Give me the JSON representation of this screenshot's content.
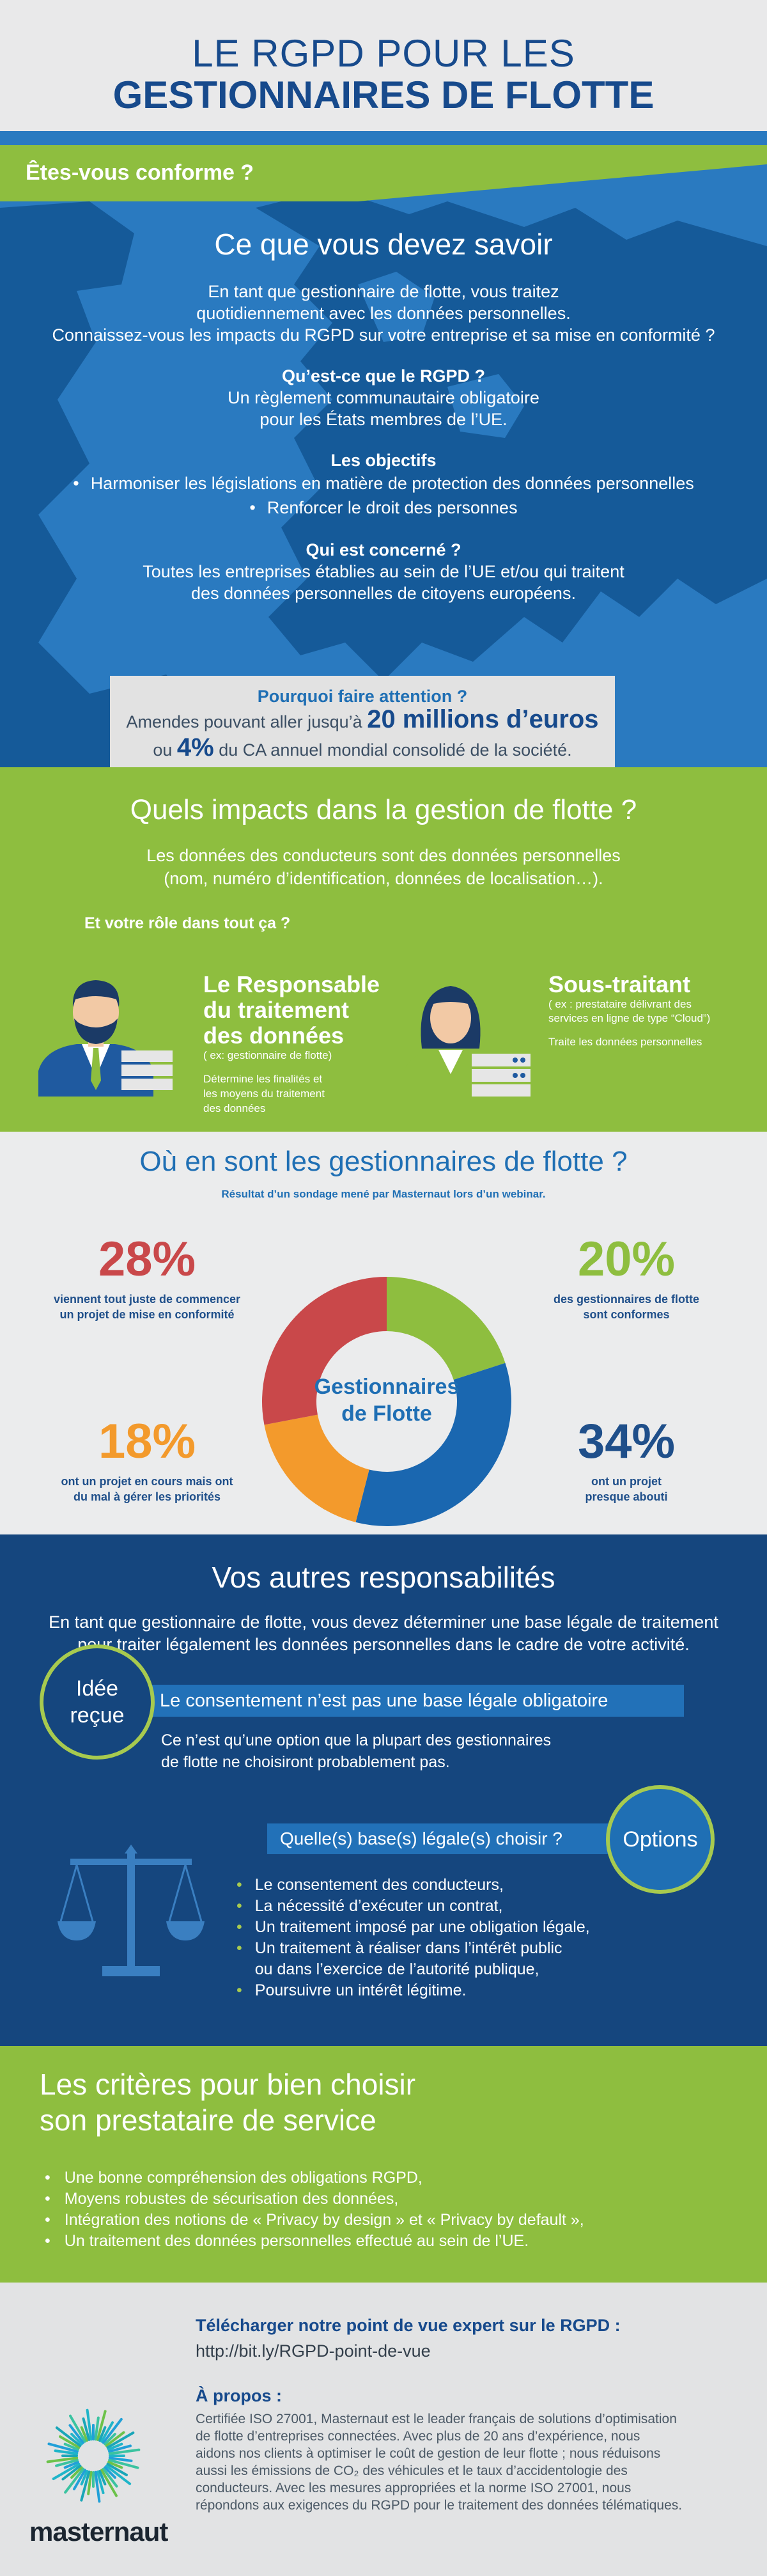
{
  "header": {
    "line1": "LE RGPD POUR LES",
    "line2": "GESTIONNAIRES DE FLOTTE"
  },
  "section1": {
    "banner": "Êtes-vous conforme ?",
    "title": "Ce que vous devez savoir",
    "intro": [
      "En tant que gestionnaire de flotte, vous traitez",
      "quotidiennement avec les données personnelles.",
      "Connaissez-vous les impacts du RGPD sur votre entreprise et sa mise en conformité ?"
    ],
    "q1": "Qu’est-ce que le RGPD ?",
    "a1": [
      "Un règlement communautaire obligatoire",
      "pour les États membres de l’UE."
    ],
    "q2": "Les objectifs",
    "a2": [
      "Harmoniser les législations en matière de protection des données personnelles",
      "Renforcer le droit des personnes"
    ],
    "q3": "Qui est concerné ?",
    "a3": [
      "Toutes les entreprises établies au sein de l’UE et/ou qui traitent",
      "des données personnelles de citoyens européens."
    ],
    "attention": {
      "title": "Pourquoi faire attention ?",
      "l1a": "Amendes pouvant aller jusqu’à",
      "l1b": "20 millions d’euros",
      "l2a": "ou",
      "l2b": "4%",
      "l2c": "du CA annuel mondial consolidé de la société."
    }
  },
  "section2": {
    "title": "Quels impacts dans la gestion de flotte ?",
    "p": [
      "Les données des conducteurs sont des données personnelles",
      "(nom, numéro d’identification, données de localisation…)."
    ],
    "role": "Et votre rôle dans tout ça ?",
    "resp": {
      "h": [
        "Le Responsable",
        "du traitement",
        "des données"
      ],
      "sub": "( ex: gestionnaire de flotte)",
      "desc": [
        "Détermine les finalités et",
        "les moyens du traitement",
        "des données"
      ]
    },
    "sous": {
      "h": "Sous-traitant",
      "sub": [
        "( ex : prestataire délivrant des",
        "services en ligne de type “Cloud”)"
      ],
      "desc": "Traite les données personnelles"
    }
  },
  "section3": {
    "title": "Où en sont les gestionnaires de flotte ?",
    "survey": "Résultat d’un sondage mené par Masternaut lors d’un webinar.",
    "center": [
      "Gestionnaires",
      "de Flotte"
    ],
    "stats": [
      {
        "value": "28%",
        "desc": [
          "viennent tout juste de commencer",
          "un projet de mise en conformité"
        ],
        "color": "#c9484a"
      },
      {
        "value": "20%",
        "desc": [
          "des gestionnaires de flotte",
          "sont conformes"
        ],
        "color": "#8ebe3f"
      },
      {
        "value": "18%",
        "desc": [
          "ont un projet en cours mais ont",
          "du mal à gérer les priorités"
        ],
        "color": "#f39a2c"
      },
      {
        "value": "34%",
        "desc": [
          "ont un projet",
          "presque abouti"
        ],
        "color": "#1a67b0"
      }
    ]
  },
  "chart_data": {
    "type": "pie",
    "categories": [
      "viennent tout juste de commencer un projet de mise en conformité",
      "des gestionnaires de flotte sont conformes",
      "ont un projet presque abouti",
      "ont un projet en cours mais ont du mal à gérer les priorités"
    ],
    "values": [
      28,
      20,
      34,
      18
    ],
    "colors": [
      "#c9484a",
      "#8ebe3f",
      "#1a67b0",
      "#f39a2c"
    ]
  },
  "section4": {
    "title": "Vos autres responsabilités",
    "intro": [
      "En tant que gestionnaire de flotte, vous devez déterminer une base légale de traitement",
      "pour traiter légalement les données personnelles dans le cadre de votre activité."
    ],
    "idee": [
      "Idée",
      "reçue"
    ],
    "bar1": "Le consentement n’est pas une base légale obligatoire",
    "p1": [
      "Ce n’est qu’une option que la plupart des gestionnaires",
      "de flotte ne choisiront probablement pas."
    ],
    "bar2": "Quelle(s) base(s) légale(s) choisir ?",
    "options": "Options",
    "list": [
      "Le consentement des conducteurs,",
      "La nécessité d’exécuter un contrat,",
      "Un traitement imposé par une obligation légale,",
      "Un traitement à réaliser dans l’intérêt public",
      "ou dans l’exercice de l’autorité publique,",
      "Poursuivre un intérêt légitime."
    ]
  },
  "section5": {
    "title": [
      "Les critères pour bien choisir",
      "son prestataire de service"
    ],
    "list": [
      "Une bonne compréhension des obligations RGPD,",
      "Moyens robustes de sécurisation des données,",
      "Intégration des notions de « Privacy by design » et « Privacy by default »,",
      "Un traitement des données personnelles effectué au sein de l’UE."
    ]
  },
  "section6": {
    "download": "Télécharger notre point de vue expert sur le RGPD :",
    "url": "http://bit.ly/RGPD-point-de-vue",
    "apropos": "À propos :",
    "body": [
      "Certifiée ISO 27001,  Masternaut est le leader français de solutions d’optimisation",
      "de flotte d’entreprises connectées. Avec plus de 20 ans d’expérience, nous",
      "aidons nos clients à  optimiser le coût de gestion de leur flotte ;  nous réduisons",
      "aussi les émissions de CO₂ des véhicules et le taux d’accidentologie des",
      "conducteurs.  Avec les mesures appropriées et la norme ISO 27001, nous",
      "répondons aux exigences du RGPD pour le traitement des données télématiques."
    ],
    "logo": "masternaut"
  }
}
